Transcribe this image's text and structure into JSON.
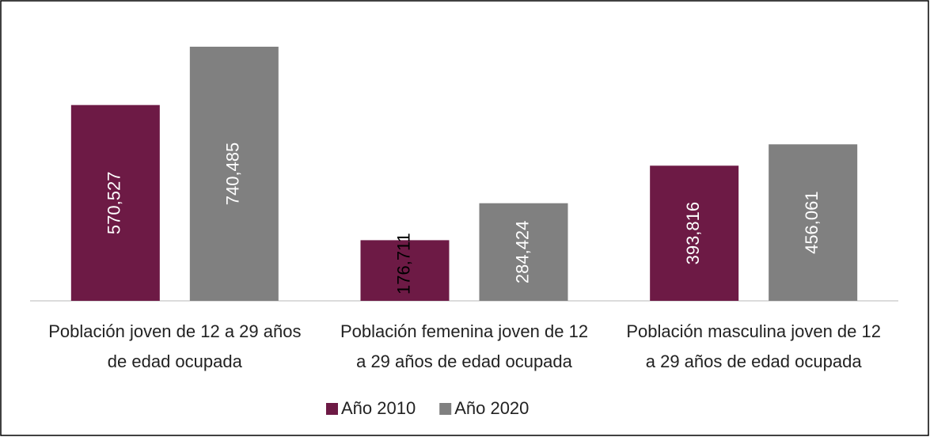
{
  "chart_data": {
    "type": "bar",
    "categories": [
      "Población joven de 12 a 29 años de edad ocupada",
      "Población femenina joven de 12 a 29 años de edad ocupada",
      "Población masculina joven de 12 a 29 años de edad ocupada"
    ],
    "series": [
      {
        "name": "Año 2010",
        "color": "#6d1a45",
        "values": [
          570527,
          176711,
          393816
        ],
        "value_labels": [
          "570,527",
          "176,711",
          "393,816"
        ]
      },
      {
        "name": "Año 2020",
        "color": "#808080",
        "values": [
          740485,
          284424,
          456061
        ],
        "value_labels": [
          "740,485",
          "284,424",
          "456,061"
        ]
      }
    ],
    "legend": "bottom"
  }
}
